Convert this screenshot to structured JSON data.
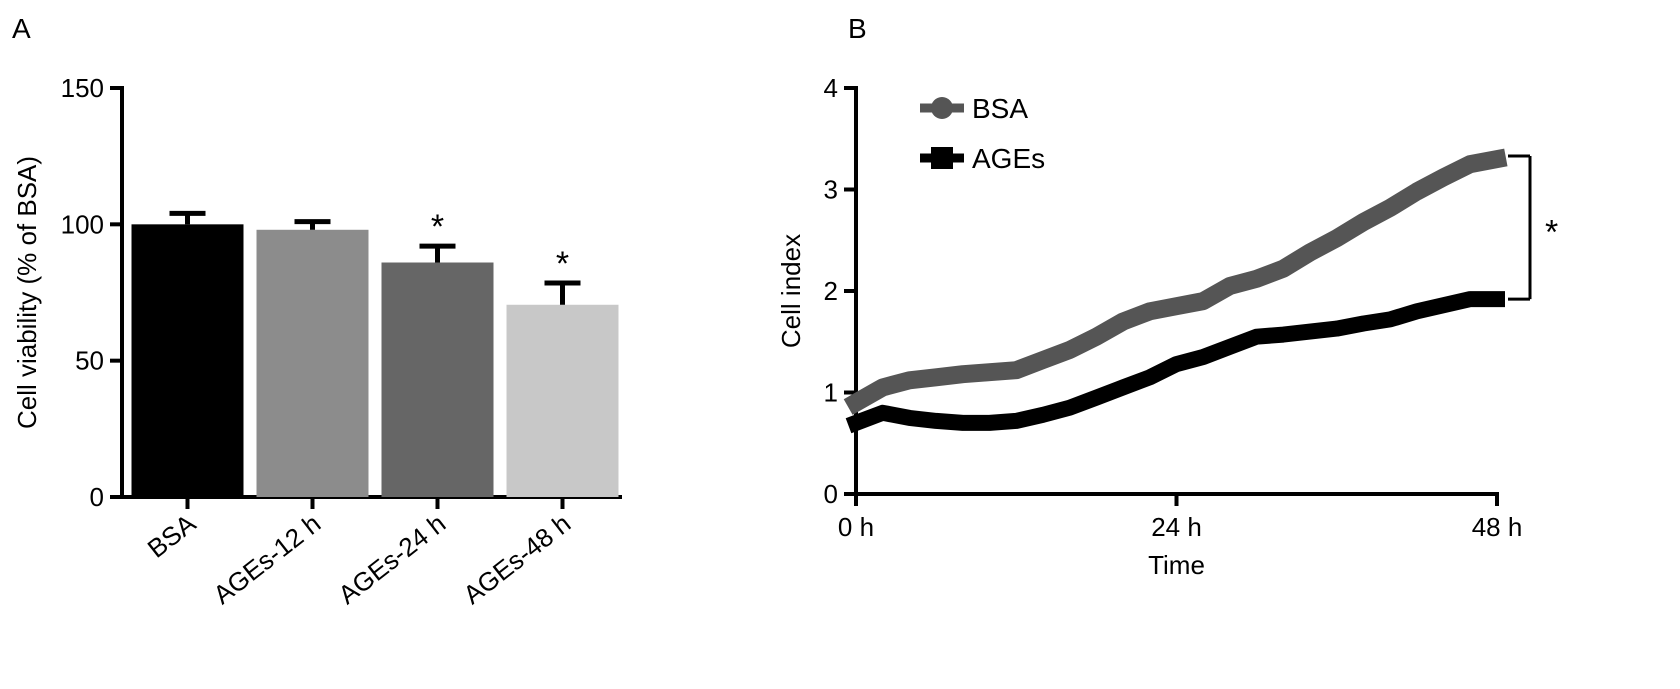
{
  "panel_labels": {
    "a": "A",
    "b": "B"
  },
  "chart_data": [
    {
      "type": "bar",
      "panel": "A",
      "categories": [
        "BSA",
        "AGEs-12 h",
        "AGEs-24 h",
        "AGEs-48 h"
      ],
      "values": [
        100,
        98,
        86,
        70.5
      ],
      "errors": [
        4,
        3,
        6,
        8
      ],
      "significance": [
        "",
        "",
        "*",
        "*"
      ],
      "colors": [
        "#000000",
        "#8c8c8c",
        "#666666",
        "#c8c8c8"
      ],
      "xlabel": "",
      "ylabel": "Cell viability (% of BSA)",
      "ylim": [
        0,
        150
      ],
      "yticks": [
        0,
        50,
        100,
        150
      ],
      "grid": false
    },
    {
      "type": "line",
      "panel": "B",
      "xlabel": "Time",
      "ylabel": "Cell index",
      "xlim": [
        0,
        48
      ],
      "ylim": [
        0,
        4
      ],
      "xticks": [
        0,
        24,
        48
      ],
      "xtick_labels": [
        "0 h",
        "24 h",
        "48 h"
      ],
      "yticks": [
        0,
        1,
        2,
        3,
        4
      ],
      "grid": false,
      "legend_position": "top-left",
      "series": [
        {
          "name": "BSA",
          "color": "#555555",
          "marker": "circle",
          "x": [
            0,
            2,
            4,
            6,
            8,
            10,
            12,
            14,
            16,
            18,
            20,
            22,
            24,
            26,
            28,
            30,
            32,
            34,
            36,
            38,
            40,
            42,
            44,
            46,
            48
          ],
          "y": [
            0.9,
            1.05,
            1.12,
            1.15,
            1.18,
            1.2,
            1.22,
            1.32,
            1.42,
            1.55,
            1.7,
            1.8,
            1.85,
            1.9,
            2.05,
            2.12,
            2.22,
            2.38,
            2.52,
            2.68,
            2.82,
            2.98,
            3.12,
            3.25,
            3.3
          ]
        },
        {
          "name": "AGEs",
          "color": "#000000",
          "marker": "square",
          "x": [
            0,
            2,
            4,
            6,
            8,
            10,
            12,
            14,
            16,
            18,
            20,
            22,
            24,
            26,
            28,
            30,
            32,
            34,
            36,
            38,
            40,
            42,
            44,
            46,
            48
          ],
          "y": [
            0.7,
            0.8,
            0.75,
            0.72,
            0.7,
            0.7,
            0.72,
            0.78,
            0.85,
            0.95,
            1.05,
            1.15,
            1.28,
            1.35,
            1.45,
            1.55,
            1.57,
            1.6,
            1.63,
            1.68,
            1.72,
            1.8,
            1.86,
            1.92,
            1.92
          ]
        }
      ],
      "annotation": "*"
    }
  ]
}
